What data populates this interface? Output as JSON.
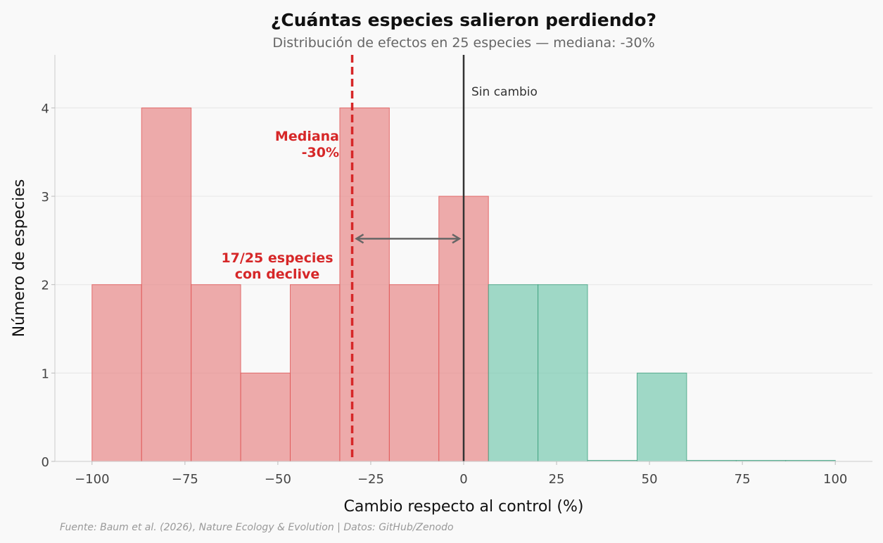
{
  "chart_data": {
    "type": "bar",
    "title": "¿Cuántas especies salieron perdiendo?",
    "subtitle": "Distribución de efectos en 25 especies — mediana: -30%",
    "xlabel": "Cambio respecto al control (%)",
    "ylabel": "Número de especies",
    "xlim": [
      -110,
      110
    ],
    "ylim": [
      0,
      4.6
    ],
    "x_ticks": [
      -100,
      -75,
      -50,
      -25,
      0,
      25,
      50,
      75,
      100
    ],
    "x_tick_labels": [
      "−100",
      "−75",
      "−50",
      "−25",
      "0",
      "25",
      "50",
      "75",
      "100"
    ],
    "y_ticks": [
      0,
      1,
      2,
      3,
      4
    ],
    "y_tick_labels": [
      "0",
      "1",
      "2",
      "3",
      "4"
    ],
    "grid": "horizontal",
    "bins": [
      {
        "start": -100,
        "end": -86.67,
        "count": 2
      },
      {
        "start": -86.67,
        "end": -73.33,
        "count": 4
      },
      {
        "start": -73.33,
        "end": -60,
        "count": 2
      },
      {
        "start": -60,
        "end": -46.67,
        "count": 1
      },
      {
        "start": -46.67,
        "end": -33.33,
        "count": 2
      },
      {
        "start": -33.33,
        "end": -20,
        "count": 4
      },
      {
        "start": -20,
        "end": -6.67,
        "count": 2
      },
      {
        "start": -6.67,
        "end": 6.67,
        "count": 3
      },
      {
        "start": 6.67,
        "end": 20,
        "count": 2
      },
      {
        "start": 20,
        "end": 33.33,
        "count": 2
      },
      {
        "start": 33.33,
        "end": 46.67,
        "count": 0
      },
      {
        "start": 46.67,
        "end": 60,
        "count": 1
      },
      {
        "start": 60,
        "end": 73.33,
        "count": 0
      },
      {
        "start": 73.33,
        "end": 86.67,
        "count": 0
      },
      {
        "start": 86.67,
        "end": 100,
        "count": 0
      }
    ],
    "decline_color": "#e88a8a",
    "decline_edge": "#e05555",
    "gain_color": "#7ccbb1",
    "gain_edge": "#3fa07e",
    "median": -30,
    "median_color": "#d62728",
    "zero_line": 0,
    "zero_color": "#333333",
    "arrow": {
      "from": -30,
      "to": 0,
      "y": 2.52
    },
    "annotations": {
      "zero_label": "Sin cambio",
      "median_line1": "Mediana",
      "median_line2": "-30%",
      "decline_line1": "17/25 especies",
      "decline_line2": "con declive"
    },
    "source": "Fuente: Baum et al. (2026), Nature Ecology & Evolution | Datos: GitHub/Zenodo"
  }
}
